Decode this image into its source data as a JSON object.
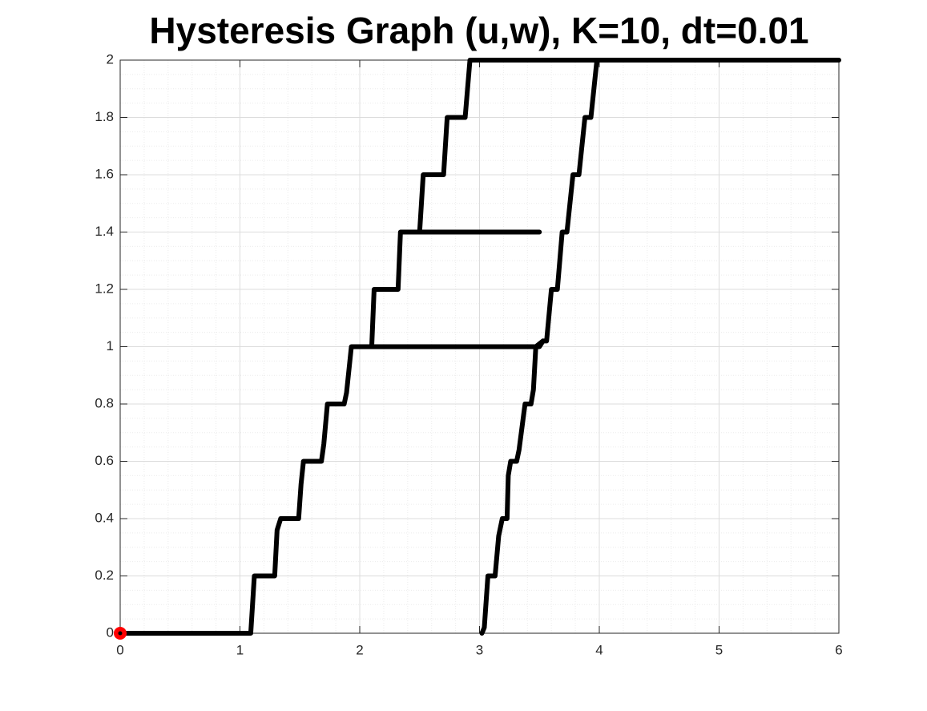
{
  "chart_data": {
    "type": "line",
    "title": "Hysteresis Graph (u,w), K=10, dt=0.01",
    "xlim": [
      0,
      6
    ],
    "ylim": [
      0,
      2
    ],
    "xticks": [
      0,
      1,
      2,
      3,
      4,
      5,
      6
    ],
    "yticks": [
      0,
      0.2,
      0.4,
      0.6,
      0.8,
      1,
      1.2,
      1.4,
      1.6,
      1.8,
      2
    ],
    "grid": true,
    "minor_grid": true,
    "series": [
      {
        "type": "line",
        "color": "#000000",
        "x": [
          0,
          1.09,
          1.12,
          1.29,
          1.31,
          1.34,
          1.49,
          1.51,
          1.53,
          1.68,
          1.7,
          1.73,
          1.87,
          1.89,
          1.93,
          3.5,
          3.53,
          3.47,
          3.45,
          3.43,
          3.38,
          3.33,
          3.31,
          3.26,
          3.24,
          3.23,
          3.19,
          3.16,
          3.13,
          3.07,
          3.04,
          3.02,
          null,
          2.1,
          2.12,
          2.32,
          2.34,
          3.5,
          null,
          2.5,
          2.53,
          2.7,
          2.73,
          2.88,
          2.92,
          6,
          null,
          3.98,
          3.93,
          3.88,
          3.83,
          3.78,
          3.73,
          3.69,
          3.65,
          3.6,
          3.56,
          3.53
        ],
        "values": [
          0,
          0,
          0.2,
          0.2,
          0.36,
          0.4,
          0.4,
          0.52,
          0.6,
          0.6,
          0.66,
          0.8,
          0.8,
          0.84,
          1,
          1,
          1.02,
          1,
          0.85,
          0.8,
          0.8,
          0.64,
          0.6,
          0.6,
          0.55,
          0.4,
          0.4,
          0.34,
          0.2,
          0.2,
          0.02,
          0,
          null,
          1,
          1.2,
          1.2,
          1.4,
          1.4,
          null,
          1.4,
          1.6,
          1.6,
          1.8,
          1.8,
          2,
          2,
          null,
          2,
          1.8,
          1.8,
          1.6,
          1.6,
          1.4,
          1.4,
          1.2,
          1.2,
          1.02,
          1.02
        ]
      },
      {
        "type": "scatter",
        "color": "#ff0000",
        "x": [
          0
        ],
        "values": [
          0
        ]
      }
    ]
  }
}
